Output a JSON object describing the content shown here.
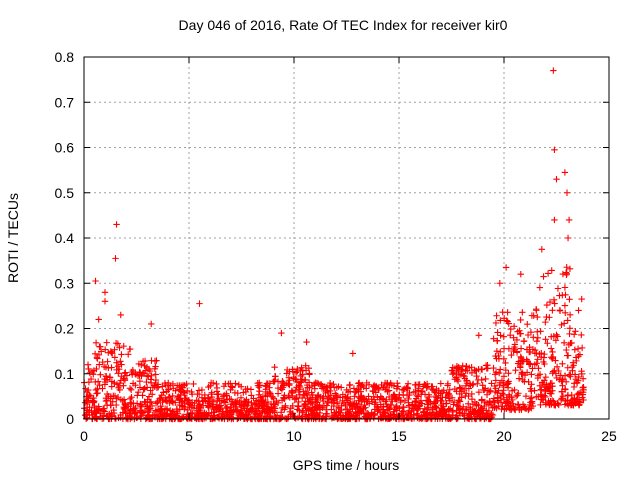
{
  "chart_data": {
    "type": "scatter",
    "title": "Day 046 of 2016, Rate Of TEC Index for receiver kir0",
    "xlabel": "GPS time / hours",
    "ylabel": "ROTI / TECUs",
    "xlim": [
      0,
      25
    ],
    "ylim": [
      0,
      0.8
    ],
    "xticks": [
      0,
      5,
      10,
      15,
      20,
      25
    ],
    "yticks": [
      0,
      0.1,
      0.2,
      0.3,
      0.4,
      0.5,
      0.6,
      0.7,
      0.8
    ],
    "grid": true,
    "marker": "+",
    "colors": {
      "points": "#ff0000",
      "grid": "#a0a0a0",
      "axes": "#000000"
    },
    "series": [
      {
        "name": "ROTI",
        "notable_points": [
          {
            "x": 1.55,
            "y": 0.43
          },
          {
            "x": 1.5,
            "y": 0.355
          },
          {
            "x": 0.55,
            "y": 0.305
          },
          {
            "x": 1.0,
            "y": 0.28
          },
          {
            "x": 1.0,
            "y": 0.26
          },
          {
            "x": 5.5,
            "y": 0.255
          },
          {
            "x": 0.7,
            "y": 0.22
          },
          {
            "x": 1.75,
            "y": 0.23
          },
          {
            "x": 3.2,
            "y": 0.21
          },
          {
            "x": 9.4,
            "y": 0.19
          },
          {
            "x": 10.6,
            "y": 0.17
          },
          {
            "x": 12.8,
            "y": 0.145
          },
          {
            "x": 18.8,
            "y": 0.185
          },
          {
            "x": 19.8,
            "y": 0.3
          },
          {
            "x": 20.1,
            "y": 0.335
          },
          {
            "x": 20.8,
            "y": 0.32
          },
          {
            "x": 21.8,
            "y": 0.375
          },
          {
            "x": 22.35,
            "y": 0.77
          },
          {
            "x": 22.4,
            "y": 0.595
          },
          {
            "x": 22.5,
            "y": 0.53
          },
          {
            "x": 22.4,
            "y": 0.44
          },
          {
            "x": 22.9,
            "y": 0.545
          },
          {
            "x": 23.0,
            "y": 0.5
          },
          {
            "x": 23.1,
            "y": 0.44
          },
          {
            "x": 23.05,
            "y": 0.4
          },
          {
            "x": 23.55,
            "y": 0.24
          },
          {
            "x": 23.7,
            "y": 0.265
          }
        ],
        "envelope": [
          {
            "x_range": [
              0,
              0.5
            ],
            "y_range": [
              0.0,
              0.12
            ]
          },
          {
            "x_range": [
              0.5,
              2.2
            ],
            "y_range": [
              0.0,
              0.17
            ]
          },
          {
            "x_range": [
              2.2,
              3.5
            ],
            "y_range": [
              0.0,
              0.13
            ]
          },
          {
            "x_range": [
              3.5,
              9.0
            ],
            "y_range": [
              0.0,
              0.08
            ]
          },
          {
            "x_range": [
              9.0,
              10.8
            ],
            "y_range": [
              0.0,
              0.12
            ]
          },
          {
            "x_range": [
              10.8,
              17.5
            ],
            "y_range": [
              0.0,
              0.08
            ]
          },
          {
            "x_range": [
              17.5,
              19.5
            ],
            "y_range": [
              0.0,
              0.12
            ]
          },
          {
            "x_range": [
              19.5,
              21.5
            ],
            "y_range": [
              0.02,
              0.24
            ]
          },
          {
            "x_range": [
              21.5,
              23.3
            ],
            "y_range": [
              0.03,
              0.34
            ]
          },
          {
            "x_range": [
              23.3,
              23.8
            ],
            "y_range": [
              0.03,
              0.2
            ]
          }
        ]
      }
    ]
  }
}
